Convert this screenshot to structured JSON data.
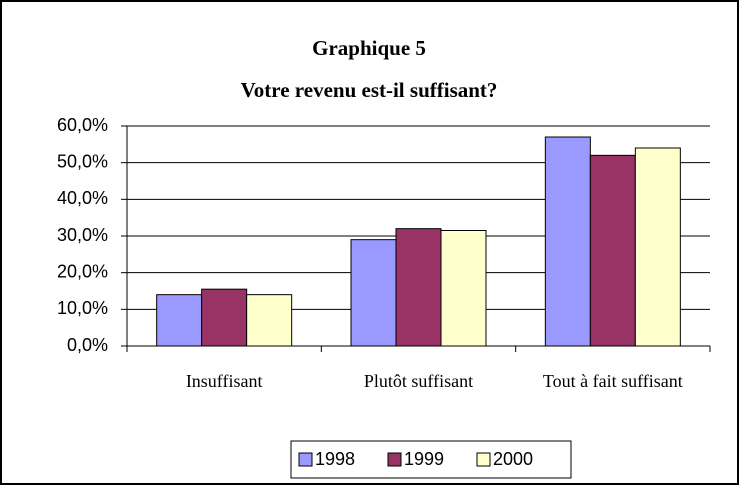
{
  "chart_data": {
    "type": "bar",
    "title": "Graphique 5",
    "subtitle": "Votre revenu est-il suffisant?",
    "categories": [
      "Insuffisant",
      "Plutôt suffisant",
      "Tout à fait suffisant"
    ],
    "series": [
      {
        "name": "1998",
        "color": "#9999ff",
        "values": [
          14,
          29,
          57
        ]
      },
      {
        "name": "1999",
        "color": "#993366",
        "values": [
          15.5,
          32,
          52
        ]
      },
      {
        "name": "2000",
        "color": "#ffffcc",
        "values": [
          14,
          31.5,
          54
        ]
      }
    ],
    "ylim": [
      0,
      60
    ],
    "yticks": [
      {
        "value": 0,
        "label": "0,0%"
      },
      {
        "value": 10,
        "label": "10,0%"
      },
      {
        "value": 20,
        "label": "20,0%"
      },
      {
        "value": 30,
        "label": "30,0%"
      },
      {
        "value": 40,
        "label": "40,0%"
      },
      {
        "value": 50,
        "label": "50,0%"
      },
      {
        "value": 60,
        "label": "60,0%"
      }
    ],
    "grid": true,
    "legend": "bottom"
  }
}
